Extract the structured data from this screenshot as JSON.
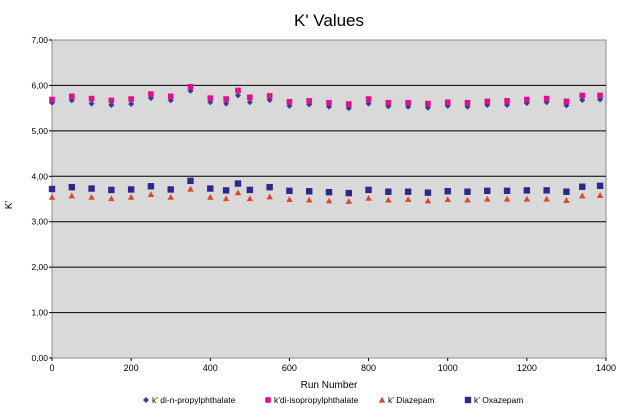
{
  "chart_data": {
    "type": "scatter",
    "title": "K' Values",
    "xlabel": "Run Number",
    "ylabel": "K'",
    "xlim": [
      0,
      1400
    ],
    "ylim": [
      0,
      7
    ],
    "x_ticks": [
      "0",
      "200",
      "400",
      "600",
      "800",
      "1000",
      "1200",
      "1400"
    ],
    "y_ticks": [
      "0,00",
      "1,00",
      "2,00",
      "3,00",
      "4,00",
      "5,00",
      "6,00",
      "7,00"
    ],
    "grid": true,
    "plot_background": "#d9d9d9",
    "legend_position": "bottom",
    "series": [
      {
        "name": "k' di-n-propylphthalate",
        "marker": "diamond",
        "color": "#3a3aa0",
        "x": [
          0,
          50,
          100,
          150,
          200,
          250,
          300,
          350,
          400,
          440,
          470,
          500,
          550,
          600,
          650,
          700,
          750,
          800,
          850,
          900,
          950,
          1000,
          1050,
          1100,
          1150,
          1200,
          1250,
          1300,
          1340,
          1385
        ],
        "y": [
          5.62,
          5.67,
          5.6,
          5.57,
          5.59,
          5.72,
          5.67,
          5.88,
          5.63,
          5.6,
          5.78,
          5.63,
          5.68,
          5.55,
          5.58,
          5.53,
          5.5,
          5.6,
          5.54,
          5.53,
          5.51,
          5.55,
          5.53,
          5.57,
          5.57,
          5.61,
          5.63,
          5.56,
          5.68,
          5.69
        ]
      },
      {
        "name": "k'di-isopropylphthalate",
        "marker": "square",
        "color": "#e0108a",
        "x": [
          0,
          50,
          100,
          150,
          200,
          250,
          300,
          350,
          400,
          440,
          470,
          500,
          550,
          600,
          650,
          700,
          750,
          800,
          850,
          900,
          950,
          1000,
          1050,
          1100,
          1150,
          1200,
          1250,
          1300,
          1340,
          1385
        ],
        "y": [
          5.69,
          5.76,
          5.71,
          5.67,
          5.7,
          5.81,
          5.76,
          5.97,
          5.72,
          5.7,
          5.89,
          5.74,
          5.77,
          5.64,
          5.66,
          5.62,
          5.59,
          5.7,
          5.62,
          5.62,
          5.6,
          5.63,
          5.62,
          5.65,
          5.66,
          5.69,
          5.71,
          5.65,
          5.78,
          5.78
        ]
      },
      {
        "name": "k' Diazepam",
        "marker": "triangle",
        "color": "#e0462c",
        "x": [
          0,
          50,
          100,
          150,
          200,
          250,
          300,
          350,
          400,
          440,
          470,
          500,
          550,
          600,
          650,
          700,
          750,
          800,
          850,
          900,
          950,
          1000,
          1050,
          1100,
          1150,
          1200,
          1250,
          1300,
          1340,
          1385
        ],
        "y": [
          3.54,
          3.57,
          3.54,
          3.51,
          3.54,
          3.6,
          3.54,
          3.72,
          3.54,
          3.51,
          3.64,
          3.51,
          3.55,
          3.49,
          3.48,
          3.46,
          3.45,
          3.52,
          3.48,
          3.49,
          3.46,
          3.49,
          3.48,
          3.5,
          3.5,
          3.5,
          3.5,
          3.47,
          3.57,
          3.58
        ]
      },
      {
        "name": "k' Oxazepam",
        "marker": "square-large",
        "color": "#2a2a8c",
        "x": [
          0,
          50,
          100,
          150,
          200,
          250,
          300,
          350,
          400,
          440,
          470,
          500,
          550,
          600,
          650,
          700,
          750,
          800,
          850,
          900,
          950,
          1000,
          1050,
          1100,
          1150,
          1200,
          1250,
          1300,
          1340,
          1385
        ],
        "y": [
          3.72,
          3.76,
          3.73,
          3.7,
          3.71,
          3.78,
          3.71,
          3.9,
          3.73,
          3.69,
          3.84,
          3.7,
          3.76,
          3.68,
          3.67,
          3.65,
          3.63,
          3.7,
          3.66,
          3.66,
          3.64,
          3.67,
          3.66,
          3.68,
          3.68,
          3.69,
          3.69,
          3.66,
          3.77,
          3.79
        ]
      }
    ]
  }
}
